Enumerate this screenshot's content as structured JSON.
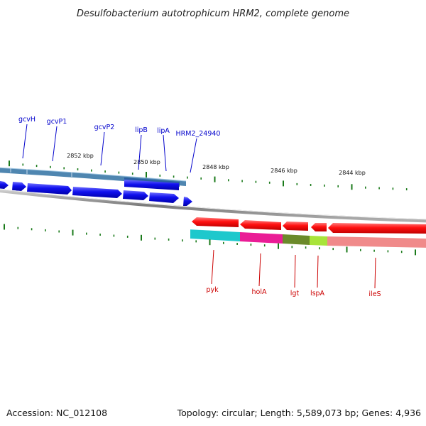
{
  "title": "Desulfobacterium autotrophicum HRM2, complete genome",
  "footer": {
    "accession": "Accession: NC_012108",
    "summary": "Topology: circular; Length: 5,589,073 bp; Genes: 4,936"
  },
  "colors": {
    "forward_gene": "#0a0ae6",
    "reverse_gene": "#ff0000",
    "forward_label": "#0000cc",
    "reverse_label": "#cc0000",
    "backbone": "#888888",
    "tick": "#1a7a1a",
    "cog_track_forward": "#4f86b0",
    "cog_cyan": "#1ec8cc",
    "cog_magenta": "#ea1d96",
    "cog_olive": "#6b8a2a",
    "cog_lime": "#a8e43a",
    "cog_pink": "#f08a8a"
  },
  "scale_labels": [
    "2852 kbp",
    "2850 kbp",
    "2848 kbp",
    "2846 kbp",
    "2844 kbp"
  ],
  "forward_genes": [
    {
      "name": "gcvH"
    },
    {
      "name": "gcvP1"
    },
    {
      "name": "gcvP2"
    },
    {
      "name": "lipB"
    },
    {
      "name": "lipA"
    },
    {
      "name": "HRM2_24940"
    }
  ],
  "reverse_genes": [
    {
      "name": "pyk"
    },
    {
      "name": "holA"
    },
    {
      "name": "lgt"
    },
    {
      "name": "lspA"
    },
    {
      "name": "ileS"
    }
  ]
}
